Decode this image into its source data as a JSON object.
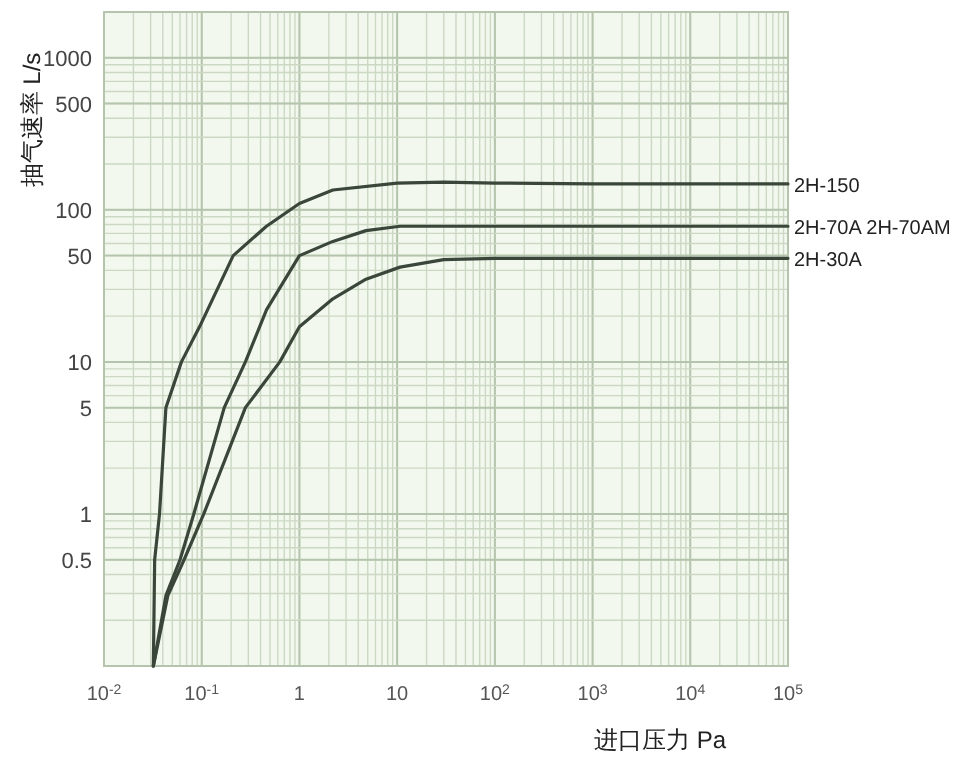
{
  "chart_data": {
    "type": "line",
    "xlabel": "进口压力 Pa",
    "ylabel": "抽气速率 L/s",
    "log": "xy",
    "grid": true,
    "legend": false,
    "xlim": [
      0.01,
      100000
    ],
    "ylim": [
      0.1,
      2000
    ],
    "xticks": [
      {
        "value": 0.01,
        "label": "10$^{-2}$"
      },
      {
        "value": 0.1,
        "label": "10$^{-1}$"
      },
      1,
      10,
      {
        "value": 100,
        "label": "10$^{2}$"
      },
      {
        "value": 1000,
        "label": "10$^{3}$"
      },
      {
        "value": 10000,
        "label": "10$^{4}$"
      },
      {
        "value": 100000,
        "label": "10$^{5}$"
      }
    ],
    "yticks": [
      0.5,
      1,
      5,
      10,
      50,
      100,
      500,
      1000
    ],
    "series": [
      {
        "name": "2H-150",
        "color": "#3a463a",
        "x": [
          0.032,
          0.033,
          0.037,
          0.043,
          0.062,
          0.095,
          0.21,
          0.46,
          1,
          2.2,
          10,
          30,
          100,
          1000,
          100000
        ],
        "values": [
          0.1,
          0.5,
          1,
          5,
          10,
          17,
          50,
          78,
          110,
          135,
          150,
          152,
          150,
          148,
          148
        ]
      },
      {
        "name": "2H-70A 2H-70AM",
        "color": "#3a463a",
        "x": [
          0.032,
          0.043,
          0.06,
          0.083,
          0.17,
          0.28,
          0.46,
          1,
          2.2,
          4.8,
          10.7,
          50,
          100000
        ],
        "values": [
          0.1,
          0.29,
          0.5,
          1,
          5,
          10,
          22,
          50,
          62,
          73,
          78,
          78,
          78
        ]
      },
      {
        "name": "2H-30A",
        "color": "#3a463a",
        "x": [
          0.032,
          0.045,
          0.066,
          0.105,
          0.28,
          0.63,
          1,
          2.2,
          4.8,
          10.7,
          30,
          100,
          100000
        ],
        "values": [
          0.1,
          0.29,
          0.5,
          1,
          5,
          10,
          17,
          26,
          35,
          42,
          47,
          48,
          48
        ]
      }
    ]
  }
}
